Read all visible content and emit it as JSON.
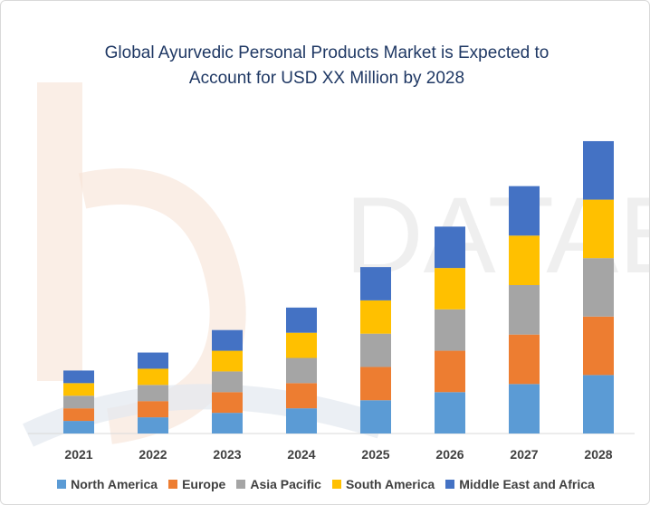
{
  "chart_data": {
    "type": "bar",
    "stacked": true,
    "title_lines": [
      "Global Ayurvedic Personal Products Market is Expected to",
      "Account for USD XX Million by 2028"
    ],
    "categories": [
      "2021",
      "2022",
      "2023",
      "2024",
      "2025",
      "2026",
      "2027",
      "2028"
    ],
    "series": [
      {
        "name": "North America",
        "color": "#5b9bd5",
        "values": [
          14,
          18,
          23,
          28,
          37,
          46,
          55,
          65
        ]
      },
      {
        "name": "Europe",
        "color": "#ed7d31",
        "values": [
          14,
          18,
          23,
          28,
          37,
          46,
          55,
          65
        ]
      },
      {
        "name": "Asia Pacific",
        "color": "#a5a5a5",
        "values": [
          14,
          18,
          23,
          28,
          37,
          46,
          55,
          65
        ]
      },
      {
        "name": "South America",
        "color": "#ffc000",
        "values": [
          14,
          18,
          23,
          28,
          37,
          46,
          55,
          65
        ]
      },
      {
        "name": "Middle East and Africa",
        "color": "#4472c4",
        "values": [
          14,
          18,
          23,
          28,
          37,
          46,
          55,
          65
        ]
      }
    ],
    "ylim": [
      0,
      330
    ],
    "grid": false,
    "legend_position": "bottom"
  }
}
